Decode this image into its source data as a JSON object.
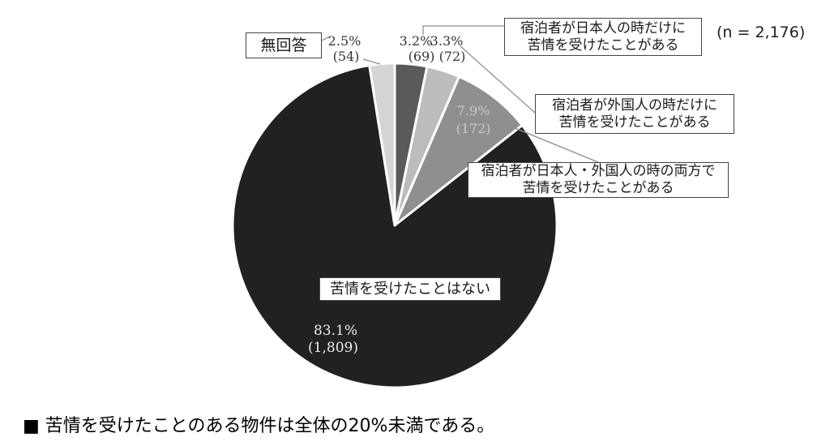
{
  "header": {
    "n_label": "(n = 2,176)"
  },
  "chart_data": {
    "type": "pie",
    "title": "",
    "n": 2176,
    "order_note": "segments listed clockwise starting at 12 o'clock",
    "segments": [
      {
        "id": "japanese-only",
        "label": "宿泊者が日本人の時だけに苦情を受けたことがある",
        "pct": 3.2,
        "count": 69,
        "pct_label": "3.2%",
        "count_label": "(69)",
        "color": "#5a5a5a"
      },
      {
        "id": "foreigner-only",
        "label": "宿泊者が外国人の時だけに苦情を受けたことがある",
        "pct": 3.3,
        "count": 72,
        "pct_label": "3.3%",
        "count_label": "(72)",
        "color": "#bcbcbc"
      },
      {
        "id": "both",
        "label": "宿泊者が日本人・外国人の時の両方で苦情を受けたことがある",
        "pct": 7.9,
        "count": 172,
        "pct_label": "7.9%",
        "count_label": "(172)",
        "color": "#8f8f8f"
      },
      {
        "id": "none",
        "label": "苦情を受けたことはない",
        "pct": 83.1,
        "count": 1809,
        "pct_label": "83.1%",
        "count_label": "(1,809)",
        "color": "#212121"
      },
      {
        "id": "no-answer",
        "label": "無回答",
        "pct": 2.5,
        "count": 54,
        "pct_label": "2.5%",
        "count_label": "(54)",
        "color": "#d4d4d4"
      }
    ],
    "legend_position": "callout-boxes",
    "colors_note": "grayscale pie, white gaps between slices"
  },
  "callouts": {
    "japanese_only": {
      "line1": "宿泊者が日本人の時だけに",
      "line2": "苦情を受けたことがある"
    },
    "foreigner_only": {
      "line1": "宿泊者が外国人の時だけに",
      "line2": "苦情を受けたことがある"
    },
    "both": {
      "line1": "宿泊者が日本人・外国人の時の両方で",
      "line2": "苦情を受けたことがある"
    },
    "none": {
      "line1": "苦情を受けたことはない"
    },
    "no_answer": {
      "line1": "無回答"
    }
  },
  "summary": {
    "text": "■ 苦情を受けたことのある物件は全体の20%未満である。"
  }
}
